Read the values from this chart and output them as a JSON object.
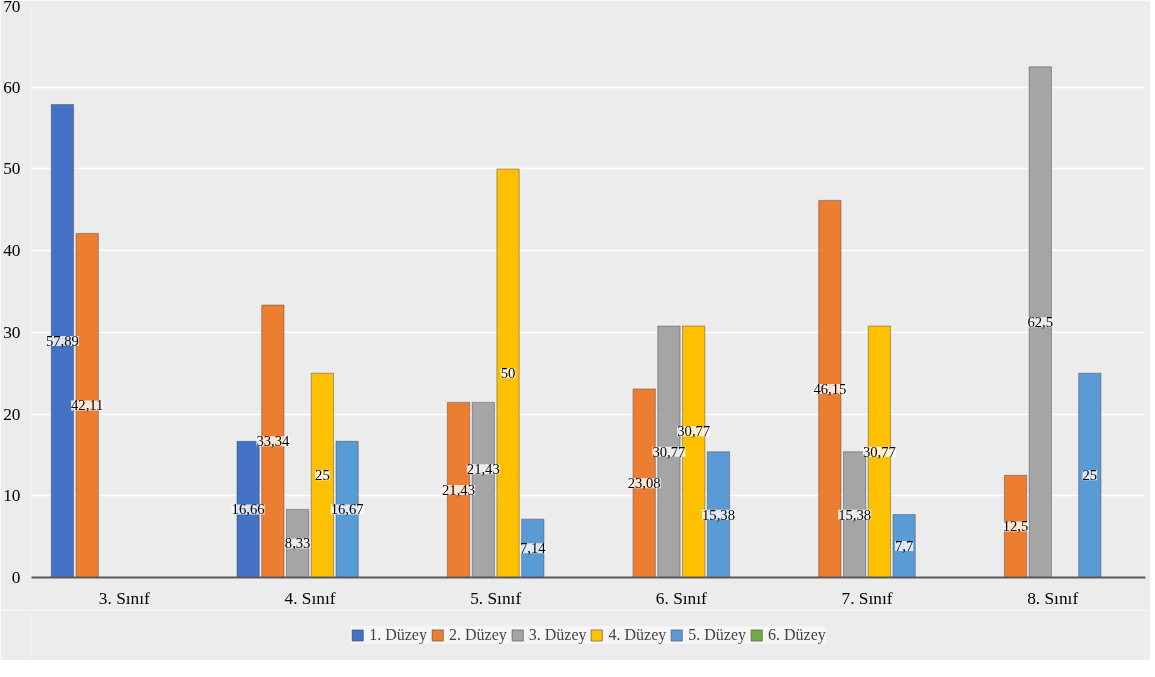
{
  "chart_data": {
    "type": "bar",
    "categories": [
      "3. Sınıf",
      "4. Sınıf",
      "5. Sınıf",
      "6. Sınıf",
      "7. Sınıf",
      "8. Sınıf"
    ],
    "series": [
      {
        "name": "1. Düzey",
        "color": "#4472c4",
        "values": [
          57.89,
          16.66,
          null,
          null,
          null,
          null
        ],
        "value_labels": [
          "57,89",
          "16,66",
          null,
          null,
          null,
          null
        ]
      },
      {
        "name": "2. Düzey",
        "color": "#ed7d31",
        "values": [
          42.11,
          33.34,
          21.43,
          23.08,
          46.15,
          12.5
        ],
        "value_labels": [
          "42,11",
          "33,34",
          "21,43",
          "23,08",
          "46,15",
          "12,5"
        ]
      },
      {
        "name": "3. Düzey",
        "color": "#a5a5a5",
        "values": [
          null,
          8.33,
          21.43,
          30.77,
          15.38,
          62.5
        ],
        "value_labels": [
          null,
          "8,33",
          "21,43",
          "30,77",
          "15,38",
          "62,5"
        ]
      },
      {
        "name": "4. Düzey",
        "color": "#ffc000",
        "values": [
          null,
          25,
          50,
          30.77,
          30.77,
          null
        ],
        "value_labels": [
          null,
          "25",
          "50",
          "30,77",
          "30,77",
          null
        ]
      },
      {
        "name": "5. Düzey",
        "color": "#5b9bd5",
        "values": [
          null,
          16.67,
          7.14,
          15.38,
          7.7,
          25
        ],
        "value_labels": [
          null,
          "16,67",
          "7,14",
          "15,38",
          "7,7",
          "25"
        ]
      },
      {
        "name": "6. Düzey",
        "color": "#70ad47",
        "values": [
          null,
          null,
          null,
          null,
          null,
          null
        ]
      }
    ],
    "ylim": [
      0,
      70
    ],
    "yticks": [
      0,
      10,
      20,
      30,
      40,
      50,
      60,
      70
    ],
    "grid": "y",
    "legend": "bottom"
  }
}
